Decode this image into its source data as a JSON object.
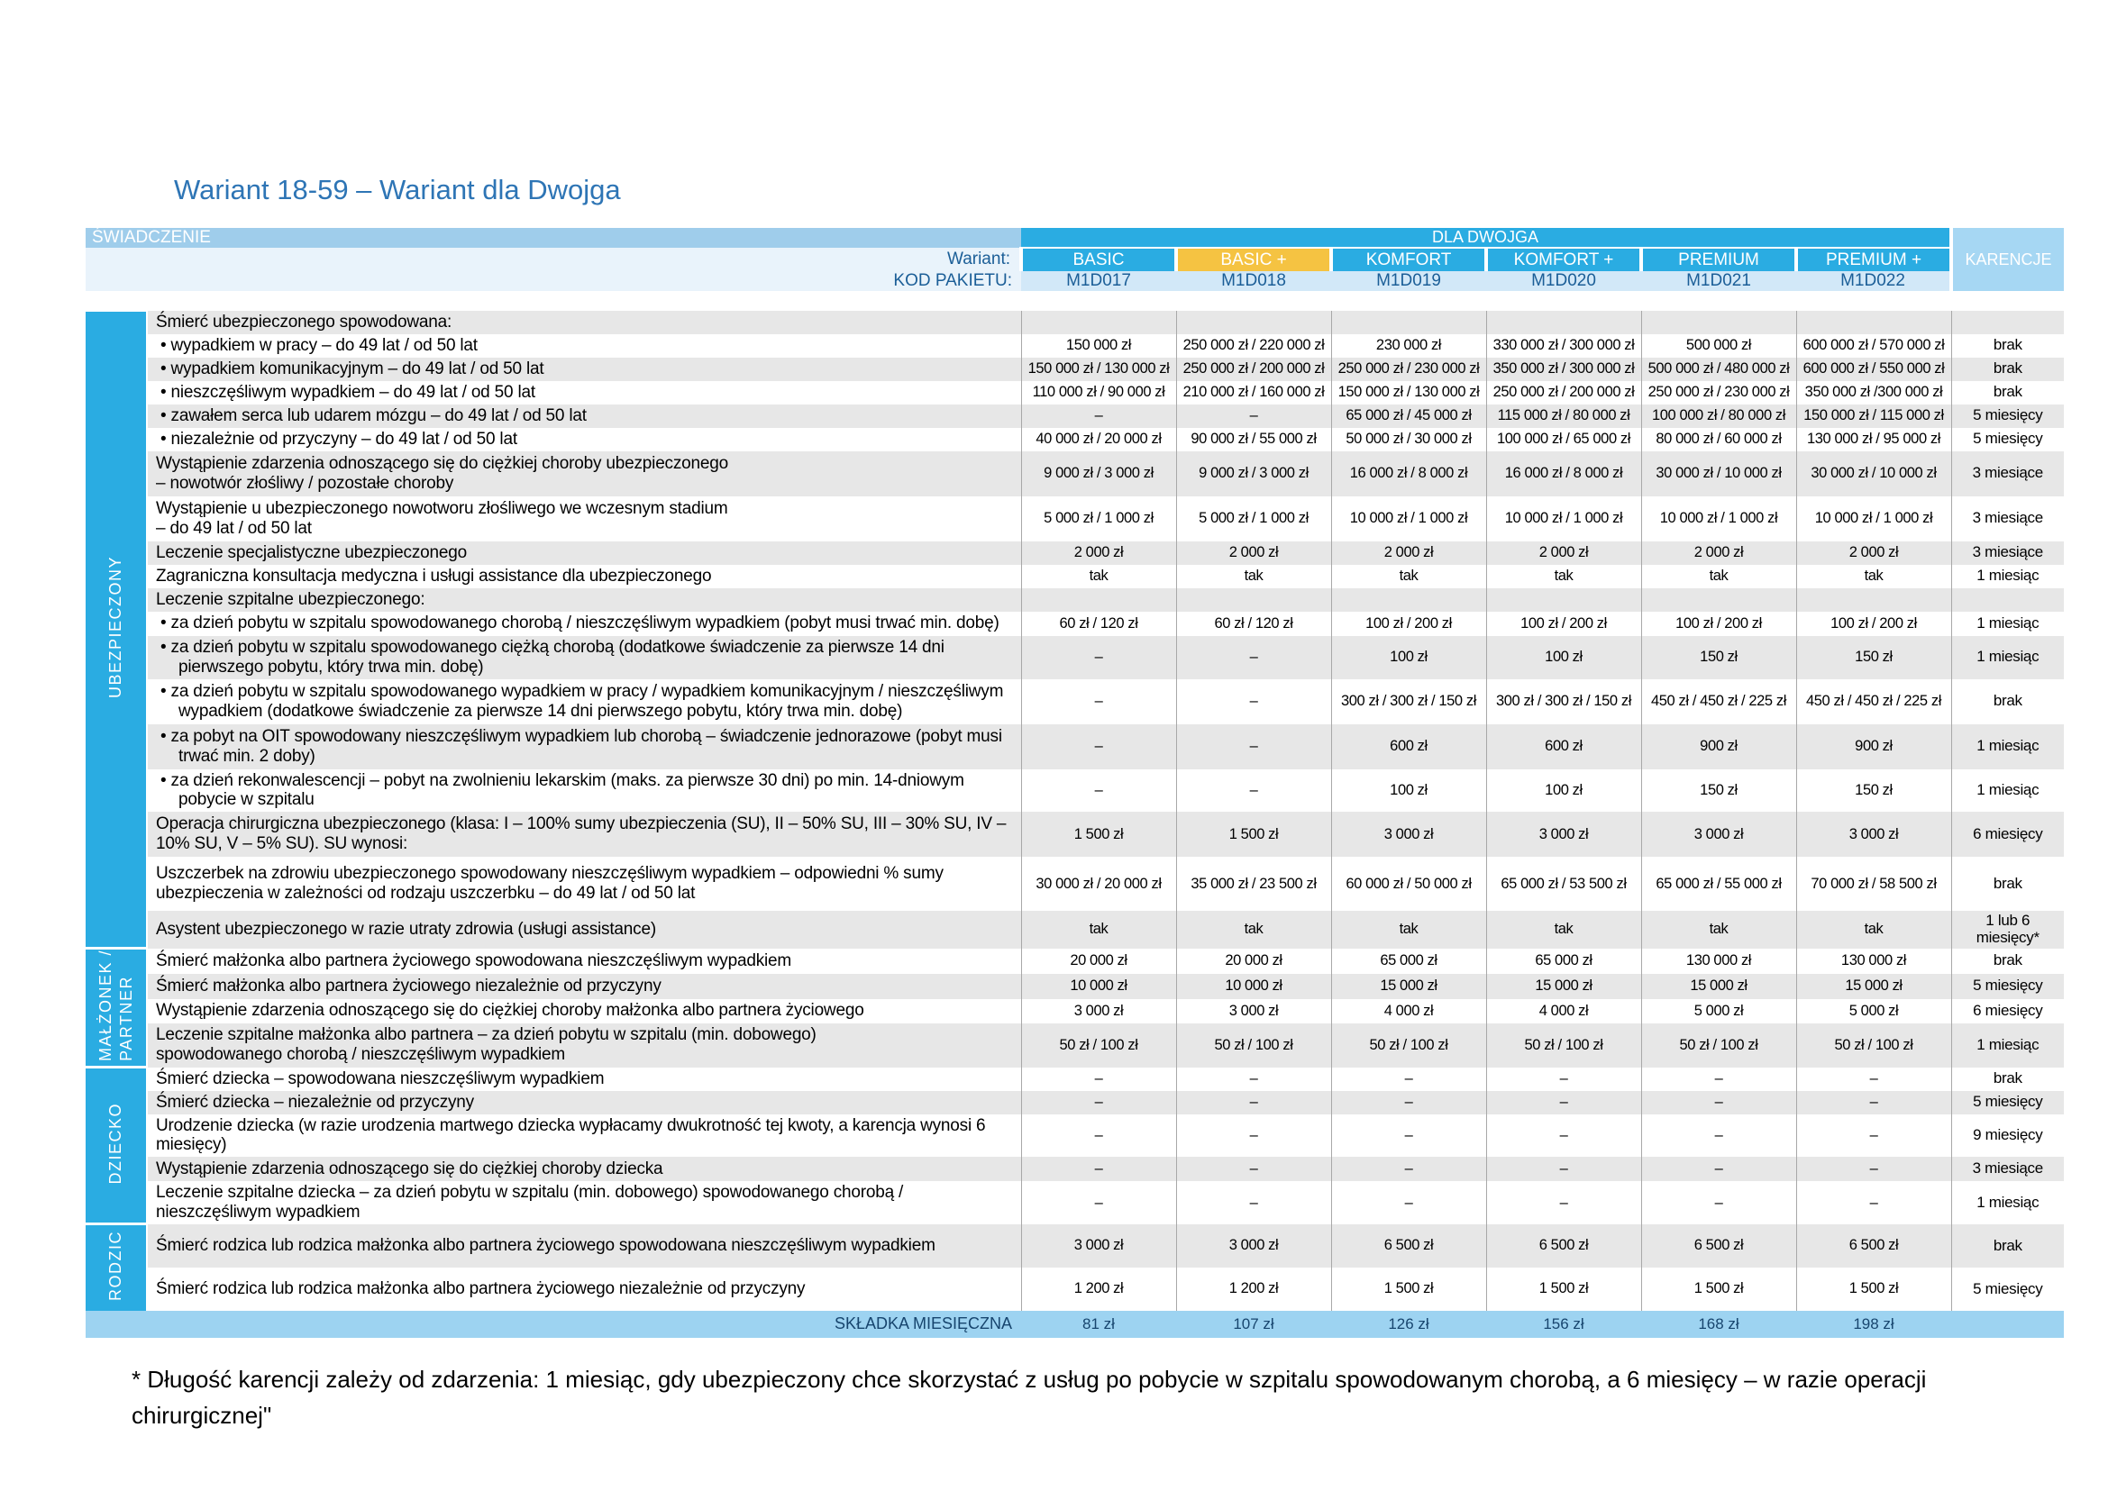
{
  "page": {
    "title": "Wariant 18-59 – Wariant dla Dwojga",
    "footnote": "* Długość karencji zależy od zdarzenia: 1 miesiąc, gdy ubezpieczony chce skorzystać z usług po pobycie w szpitalu spowodowanym chorobą, a 6 miesięcy – w razie operacji chirurgicznej\""
  },
  "colors": {
    "accent_cyan": "#2aace2",
    "highlight_yellow": "#f5c342",
    "light_blue_bar": "#9fcdeb",
    "karencje_blue": "#a6d7f3",
    "code_row_blue": "#d2e8f8",
    "navy_text": "#1b5e97",
    "stripe_gray": "#e7e7e7",
    "premium_row_blue": "#9dd3f1",
    "title_blue": "#2e75b5"
  },
  "table": {
    "header": {
      "swiadczenie": "ŚWIADCZENIE",
      "group": "DLA DWOJGA",
      "wariant_label": "Wariant:",
      "kod_label": "KOD PAKIETU:",
      "karencje": "KARENCJE",
      "variants": [
        {
          "name": "BASIC",
          "code": "M1D017",
          "highlight": false
        },
        {
          "name": "BASIC +",
          "code": "M1D018",
          "highlight": true
        },
        {
          "name": "KOMFORT",
          "code": "M1D019",
          "highlight": false
        },
        {
          "name": "KOMFORT +",
          "code": "M1D020",
          "highlight": false
        },
        {
          "name": "PREMIUM",
          "code": "M1D021",
          "highlight": false
        },
        {
          "name": "PREMIUM +",
          "code": "M1D022",
          "highlight": false
        }
      ]
    },
    "sections": [
      {
        "id": "ubezpieczony",
        "label_lines": [
          "UBEZPIECZONY"
        ],
        "rows": [
          {
            "benefit": "Śmierć ubezpieczonego spowodowana:",
            "bullet": false,
            "h": 22,
            "values": [
              "",
              "",
              "",
              "",
              "",
              ""
            ],
            "karencja": ""
          },
          {
            "benefit": "wypadkiem w pracy – do 49 lat / od 50 lat",
            "bullet": true,
            "h": 22,
            "values": [
              "150 000 zł",
              "250 000 zł / 220 000 zł",
              "230 000 zł",
              "330 000 zł / 300 000 zł",
              "500 000 zł",
              "600 000 zł / 570 000 zł"
            ],
            "karencja": "brak"
          },
          {
            "benefit": "wypadkiem komunikacyjnym – do 49 lat / od 50 lat",
            "bullet": true,
            "h": 22,
            "values": [
              "150 000 zł / 130 000 zł",
              "250 000 zł / 200 000 zł",
              "250 000 zł / 230 000 zł",
              "350 000 zł / 300 000 zł",
              "500 000 zł / 480 000 zł",
              "600 000 zł / 550 000 zł"
            ],
            "karencja": "brak"
          },
          {
            "benefit": "nieszczęśliwym wypadkiem – do 49 lat / od 50 lat",
            "bullet": true,
            "h": 22,
            "values": [
              "110 000 zł / 90 000 zł",
              "210 000 zł / 160 000 zł",
              "150 000 zł / 130 000 zł",
              "250 000 zł / 200 000 zł",
              "250 000 zł / 230 000 zł",
              "350 000 zł /300 000 zł"
            ],
            "karencja": "brak"
          },
          {
            "benefit": "zawałem serca lub udarem mózgu – do 49 lat / od 50 lat",
            "bullet": true,
            "h": 22,
            "values": [
              "–",
              "–",
              "65 000 zł / 45 000 zł",
              "115 000 zł / 80 000 zł",
              "100 000 zł / 80 000 zł",
              "150 000 zł / 115 000 zł"
            ],
            "karencja": "5 miesięcy"
          },
          {
            "benefit": "niezależnie od przyczyny – do 49 lat / od 50 lat",
            "bullet": true,
            "h": 22,
            "values": [
              "40 000 zł / 20 000 zł",
              "90 000 zł / 55 000 zł",
              "50 000 zł / 30 000 zł",
              "100 000 zł / 65 000 zł",
              "80 000 zł / 60 000 zł",
              "130 000 zł / 95 000 zł"
            ],
            "karencja": "5 miesięcy"
          },
          {
            "benefit": "Wystąpienie zdarzenia odnoszącego się do ciężkiej choroby ubezpieczonego\n– nowotwór złośliwy / pozostałe choroby",
            "bullet": false,
            "h": 46,
            "values": [
              "9 000 zł / 3 000 zł",
              "9 000 zł / 3 000 zł",
              "16 000 zł / 8 000 zł",
              "16 000 zł / 8 000 zł",
              "30 000 zł / 10 000 zł",
              "30 000 zł / 10 000 zł"
            ],
            "karencja": "3 miesiące"
          },
          {
            "benefit": "Wystąpienie u ubezpieczonego nowotworu złośliwego we wczesnym stadium\n– do 49 lat / od 50 lat",
            "bullet": false,
            "h": 46,
            "values": [
              "5 000 zł / 1 000 zł",
              "5 000 zł / 1 000 zł",
              "10 000 zł / 1 000 zł",
              "10 000 zł / 1 000 zł",
              "10 000 zł / 1 000 zł",
              "10 000 zł / 1 000 zł"
            ],
            "karencja": "3 miesiące"
          },
          {
            "benefit": "Leczenie specjalistyczne ubezpieczonego",
            "bullet": false,
            "h": 22,
            "values": [
              "2 000 zł",
              "2 000 zł",
              "2 000 zł",
              "2 000 zł",
              "2 000 zł",
              "2 000 zł"
            ],
            "karencja": "3 miesiące"
          },
          {
            "benefit": "Zagraniczna konsultacja medyczna i usługi assistance dla ubezpieczonego",
            "bullet": false,
            "h": 22,
            "values": [
              "tak",
              "tak",
              "tak",
              "tak",
              "tak",
              "tak"
            ],
            "karencja": "1 miesiąc"
          },
          {
            "benefit": "Leczenie szpitalne ubezpieczonego:",
            "bullet": false,
            "h": 22,
            "values": [
              "",
              "",
              "",
              "",
              "",
              ""
            ],
            "karencja": ""
          },
          {
            "benefit": "za dzień pobytu w szpitalu spowodowanego chorobą / nieszczęśliwym wypadkiem (pobyt musi trwać min. dobę)",
            "bullet": true,
            "h": 23,
            "values": [
              "60 zł / 120 zł",
              "60 zł / 120 zł",
              "100 zł / 200 zł",
              "100 zł / 200 zł",
              "100 zł / 200 zł",
              "100 zł / 200 zł"
            ],
            "karencja": "1 miesiąc"
          },
          {
            "benefit": "za dzień pobytu w szpitalu spowodowanego ciężką chorobą (dodatkowe świadczenie za pierwsze 14 dni pierwszego pobytu, który trwa min. dobę)",
            "bullet": true,
            "h": 44,
            "values": [
              "–",
              "–",
              "100 zł",
              "100 zł",
              "150 zł",
              "150 zł"
            ],
            "karencja": "1 miesiąc"
          },
          {
            "benefit": "za dzień pobytu w szpitalu spowodowanego wypadkiem w pracy / wypadkiem komunikacyjnym / nieszczęśliwym wypadkiem (dodatkowe świadczenie za pierwsze 14 dni pierwszego pobytu, który trwa min. dobę)",
            "bullet": true,
            "h": 46,
            "values": [
              "–",
              "–",
              "300 zł / 300 zł / 150 zł",
              "300 zł / 300 zł / 150 zł",
              "450 zł / 450 zł / 225 zł",
              "450 zł / 450 zł / 225 zł"
            ],
            "karencja": "brak"
          },
          {
            "benefit": "za pobyt na OIT spowodowany nieszczęśliwym wypadkiem lub chorobą – świadczenie jednorazowe (pobyt musi trwać min. 2 doby)",
            "bullet": true,
            "h": 46,
            "values": [
              "–",
              "–",
              "600 zł",
              "600 zł",
              "900 zł",
              "900 zł"
            ],
            "karencja": "1 miesiąc"
          },
          {
            "benefit": "za dzień rekonwalescencji – pobyt na zwolnieniu lekarskim (maks. za pierwsze 30 dni) po min. 14-dniowym pobycie w szpitalu",
            "bullet": true,
            "h": 40,
            "values": [
              "–",
              "–",
              "100 zł",
              "100 zł",
              "150 zł",
              "150 zł"
            ],
            "karencja": "1 miesiąc"
          },
          {
            "benefit": "Operacja chirurgiczna ubezpieczonego (klasa: I – 100% sumy ubezpieczenia (SU), II – 50% SU, III – 30% SU,  IV – 10% SU, V – 5% SU). SU wynosi:",
            "bullet": false,
            "h": 46,
            "values": [
              "1 500 zł",
              "1 500 zł",
              "3 000 zł",
              "3 000 zł",
              "3 000 zł",
              "3 000 zł"
            ],
            "karencja": "6 miesięcy"
          },
          {
            "benefit": "Uszczerbek na zdrowiu ubezpieczonego spowodowany nieszczęśliwym wypadkiem – odpowiedni % sumy ubezpieczenia w zależności od rodzaju uszczerbku – do 49 lat / od 50 lat",
            "bullet": false,
            "h": 56,
            "values": [
              "30 000 zł / 20 000 zł",
              "35 000 zł / 23 500 zł",
              "60 000 zł / 50 000 zł",
              "65 000 zł / 53 500 zł",
              "65 000 zł / 55 000 zł",
              "70 000 zł / 58 500 zł"
            ],
            "karencja": "brak"
          },
          {
            "benefit": "Asystent ubezpieczonego w razie utraty zdrowia (usługi assistance)",
            "bullet": false,
            "h": 32,
            "values": [
              "tak",
              "tak",
              "tak",
              "tak",
              "tak",
              "tak"
            ],
            "karencja": "1 lub 6 miesięcy*"
          }
        ]
      },
      {
        "id": "malzonek-partner",
        "label_lines": [
          "MAŁŻONEK /",
          "PARTNER"
        ],
        "rows": [
          {
            "benefit": "Śmierć małżonka albo partnera życiowego spowodowana nieszczęśliwym wypadkiem",
            "bullet": false,
            "h": 24,
            "values": [
              "20 000 zł",
              "20 000 zł",
              "65 000 zł",
              "65 000 zł",
              "130 000 zł",
              "130 000 zł"
            ],
            "karencja": "brak"
          },
          {
            "benefit": "Śmierć małżonka albo partnera życiowego niezależnie od przyczyny",
            "bullet": false,
            "h": 23,
            "values": [
              "10 000 zł",
              "10 000 zł",
              "15 000 zł",
              "15 000 zł",
              "15 000 zł",
              "15 000 zł"
            ],
            "karencja": "5 miesięcy"
          },
          {
            "benefit": "Wystąpienie zdarzenia odnoszącego się do ciężkiej choroby małżonka albo partnera życiowego",
            "bullet": false,
            "h": 23,
            "values": [
              "3 000 zł",
              "3 000 zł",
              "4 000 zł",
              "4 000 zł",
              "5 000 zł",
              "5 000 zł"
            ],
            "karencja": "6 miesięcy"
          },
          {
            "benefit": "Leczenie szpitalne małżonka albo partnera  – za dzień pobytu w szpitalu (min. dobowego)\nspowodowanego chorobą / nieszczęśliwym wypadkiem",
            "bullet": false,
            "h": 42,
            "values": [
              "50 zł / 100 zł",
              "50 zł / 100 zł",
              "50 zł / 100 zł",
              "50 zł / 100 zł",
              "50 zł / 100 zł",
              "50 zł / 100 zł"
            ],
            "karencja": "1 miesiąc"
          }
        ]
      },
      {
        "id": "dziecko",
        "label_lines": [
          "DZIECKO"
        ],
        "rows": [
          {
            "benefit": "Śmierć dziecka – spowodowana nieszczęśliwym wypadkiem",
            "bullet": false,
            "h": 22,
            "values": [
              "–",
              "–",
              "–",
              "–",
              "–",
              "–"
            ],
            "karencja": "brak"
          },
          {
            "benefit": "Śmierć dziecka – niezależnie od przyczyny",
            "bullet": false,
            "h": 22,
            "values": [
              "–",
              "–",
              "–",
              "–",
              "–",
              "–"
            ],
            "karencja": "5 miesięcy"
          },
          {
            "benefit": "Urodzenie dziecka (w razie urodzenia martwego dziecka wypłacamy dwukrotność tej kwoty, a karencja wynosi 6 miesięcy)",
            "bullet": false,
            "h": 23,
            "values": [
              "–",
              "–",
              "–",
              "–",
              "–",
              "–"
            ],
            "karencja": "9 miesięcy"
          },
          {
            "benefit": "Wystąpienie zdarzenia odnoszącego się do ciężkiej choroby dziecka",
            "bullet": false,
            "h": 23,
            "values": [
              "–",
              "–",
              "–",
              "–",
              "–",
              "–"
            ],
            "karencja": "3 miesiące"
          },
          {
            "benefit": "Leczenie szpitalne dziecka – za dzień pobytu w szpitalu (min. dobowego) spowodowanego chorobą / nieszczęśliwym wypadkiem",
            "bullet": false,
            "h": 36,
            "values": [
              "–",
              "–",
              "–",
              "–",
              "–",
              "–"
            ],
            "karencja": "1 miesiąc"
          }
        ]
      },
      {
        "id": "rodzic",
        "label_lines": [
          "RODZIC"
        ],
        "rows": [
          {
            "benefit": "Śmierć rodzica lub rodzica małżonka albo partnera życiowego spowodowana nieszczęśliwym wypadkiem",
            "bullet": false,
            "h": 44,
            "values": [
              "3 000 zł",
              "3 000 zł",
              "6 500 zł",
              "6 500 zł",
              "6 500 zł",
              "6 500 zł"
            ],
            "karencja": "brak"
          },
          {
            "benefit": "Śmierć rodzica lub rodzica małżonka albo partnera życiowego niezależnie od przyczyny",
            "bullet": false,
            "h": 44,
            "values": [
              "1 200 zł",
              "1 200 zł",
              "1 500 zł",
              "1 500 zł",
              "1 500 zł",
              "1 500 zł"
            ],
            "karencja": "5 miesięcy"
          }
        ]
      }
    ],
    "premium_row": {
      "label": "SKŁADKA MIESIĘCZNA",
      "values": [
        "81 zł",
        "107 zł",
        "126 zł",
        "156 zł",
        "168 zł",
        "198 zł"
      ],
      "karencja": ""
    }
  }
}
